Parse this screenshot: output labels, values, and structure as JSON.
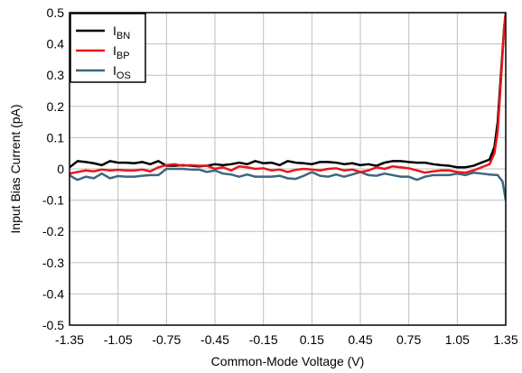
{
  "chart_data": {
    "type": "line",
    "xlabel": "Common-Mode Voltage (V)",
    "ylabel": "Input Bias Current (pA)",
    "xlim": [
      -1.35,
      1.35
    ],
    "ylim": [
      -0.5,
      0.5
    ],
    "x_ticks": [
      -1.35,
      -1.05,
      -0.75,
      -0.45,
      -0.15,
      0.15,
      0.45,
      0.75,
      1.05,
      1.35
    ],
    "y_ticks": [
      -0.5,
      -0.4,
      -0.3,
      -0.2,
      -0.1,
      0,
      0.1,
      0.2,
      0.3,
      0.4,
      0.5
    ],
    "grid": true,
    "legend_position": "top-left",
    "series": [
      {
        "name": "I",
        "subscript": "BN",
        "color": "#000000",
        "x": [
          -1.35,
          -1.3,
          -1.25,
          -1.2,
          -1.15,
          -1.1,
          -1.05,
          -1.0,
          -0.95,
          -0.9,
          -0.85,
          -0.8,
          -0.75,
          -0.7,
          -0.65,
          -0.6,
          -0.55,
          -0.5,
          -0.45,
          -0.4,
          -0.35,
          -0.3,
          -0.25,
          -0.2,
          -0.15,
          -0.1,
          -0.05,
          0.0,
          0.05,
          0.1,
          0.15,
          0.2,
          0.25,
          0.3,
          0.35,
          0.4,
          0.45,
          0.5,
          0.55,
          0.6,
          0.65,
          0.7,
          0.75,
          0.8,
          0.85,
          0.9,
          0.95,
          1.0,
          1.05,
          1.1,
          1.15,
          1.2,
          1.25,
          1.28,
          1.3,
          1.32,
          1.34,
          1.35
        ],
        "values": [
          0.005,
          0.025,
          0.022,
          0.018,
          0.012,
          0.025,
          0.02,
          0.02,
          0.018,
          0.022,
          0.015,
          0.025,
          0.01,
          0.01,
          0.012,
          0.01,
          0.008,
          0.01,
          0.015,
          0.012,
          0.015,
          0.02,
          0.015,
          0.025,
          0.018,
          0.02,
          0.012,
          0.025,
          0.02,
          0.018,
          0.015,
          0.022,
          0.022,
          0.02,
          0.015,
          0.018,
          0.012,
          0.015,
          0.01,
          0.02,
          0.025,
          0.025,
          0.022,
          0.02,
          0.02,
          0.015,
          0.012,
          0.01,
          0.005,
          0.005,
          0.01,
          0.02,
          0.03,
          0.07,
          0.15,
          0.3,
          0.45,
          0.5
        ]
      },
      {
        "name": "I",
        "subscript": "BP",
        "color": "#e8161a",
        "x": [
          -1.35,
          -1.3,
          -1.25,
          -1.2,
          -1.15,
          -1.1,
          -1.05,
          -1.0,
          -0.95,
          -0.9,
          -0.85,
          -0.8,
          -0.75,
          -0.7,
          -0.65,
          -0.6,
          -0.55,
          -0.5,
          -0.45,
          -0.4,
          -0.35,
          -0.3,
          -0.25,
          -0.2,
          -0.15,
          -0.1,
          -0.05,
          0.0,
          0.05,
          0.1,
          0.15,
          0.2,
          0.25,
          0.3,
          0.35,
          0.4,
          0.45,
          0.5,
          0.55,
          0.6,
          0.65,
          0.7,
          0.75,
          0.8,
          0.85,
          0.9,
          0.95,
          1.0,
          1.05,
          1.1,
          1.15,
          1.2,
          1.25,
          1.28,
          1.3,
          1.32,
          1.34,
          1.35
        ],
        "values": [
          -0.015,
          -0.01,
          -0.005,
          -0.008,
          -0.002,
          -0.005,
          -0.003,
          -0.005,
          -0.005,
          -0.002,
          -0.008,
          0.005,
          0.012,
          0.015,
          0.01,
          0.012,
          0.01,
          0.01,
          0.0,
          0.005,
          -0.005,
          0.008,
          0.005,
          0.0,
          0.002,
          -0.005,
          -0.002,
          -0.01,
          -0.003,
          0.0,
          -0.002,
          -0.005,
          0.0,
          0.002,
          -0.005,
          -0.002,
          -0.01,
          -0.005,
          0.005,
          0.0,
          0.008,
          0.005,
          0.002,
          -0.005,
          -0.012,
          -0.008,
          -0.005,
          -0.005,
          -0.01,
          -0.012,
          -0.005,
          0.005,
          0.015,
          0.05,
          0.12,
          0.28,
          0.45,
          0.5
        ]
      },
      {
        "name": "I",
        "subscript": "OS",
        "color": "#3d6680",
        "x": [
          -1.35,
          -1.32,
          -1.3,
          -1.25,
          -1.2,
          -1.15,
          -1.1,
          -1.05,
          -1.0,
          -0.95,
          -0.9,
          -0.85,
          -0.8,
          -0.75,
          -0.7,
          -0.65,
          -0.6,
          -0.55,
          -0.5,
          -0.45,
          -0.4,
          -0.35,
          -0.3,
          -0.25,
          -0.2,
          -0.15,
          -0.1,
          -0.05,
          0.0,
          0.05,
          0.1,
          0.15,
          0.2,
          0.25,
          0.3,
          0.35,
          0.4,
          0.45,
          0.5,
          0.55,
          0.6,
          0.65,
          0.7,
          0.75,
          0.8,
          0.85,
          0.9,
          0.95,
          1.0,
          1.05,
          1.1,
          1.15,
          1.2,
          1.25,
          1.3,
          1.33,
          1.35
        ],
        "values": [
          -0.02,
          -0.03,
          -0.035,
          -0.025,
          -0.03,
          -0.015,
          -0.03,
          -0.023,
          -0.025,
          -0.025,
          -0.022,
          -0.02,
          -0.02,
          0.0,
          0.0,
          0.0,
          -0.002,
          -0.002,
          -0.01,
          -0.005,
          -0.015,
          -0.018,
          -0.025,
          -0.018,
          -0.025,
          -0.025,
          -0.025,
          -0.022,
          -0.03,
          -0.032,
          -0.022,
          -0.01,
          -0.022,
          -0.025,
          -0.018,
          -0.025,
          -0.018,
          -0.01,
          -0.02,
          -0.022,
          -0.015,
          -0.02,
          -0.025,
          -0.025,
          -0.035,
          -0.025,
          -0.02,
          -0.02,
          -0.02,
          -0.015,
          -0.02,
          -0.012,
          -0.015,
          -0.018,
          -0.02,
          -0.04,
          -0.1
        ]
      }
    ]
  }
}
